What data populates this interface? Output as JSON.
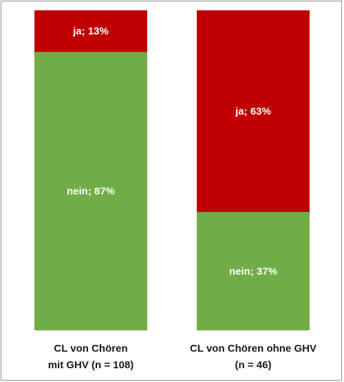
{
  "chart_data": {
    "type": "bar",
    "stacked": true,
    "percent_stacked": true,
    "categories": [
      [
        "CL von Chören",
        "mit GHV (n = 108)"
      ],
      [
        "CL von Chören ohne GHV",
        "(n = 46)"
      ]
    ],
    "series": [
      {
        "name": "nein",
        "values": [
          87,
          37
        ],
        "labels": [
          "nein; 87%",
          "nein; 37%"
        ],
        "color": "#70ad47"
      },
      {
        "name": "ja",
        "values": [
          13,
          63
        ],
        "labels": [
          "ja; 13%",
          "ja; 63%"
        ],
        "color": "#c00000"
      }
    ],
    "ylim": [
      0,
      100
    ],
    "grid": false,
    "legend": "none"
  }
}
